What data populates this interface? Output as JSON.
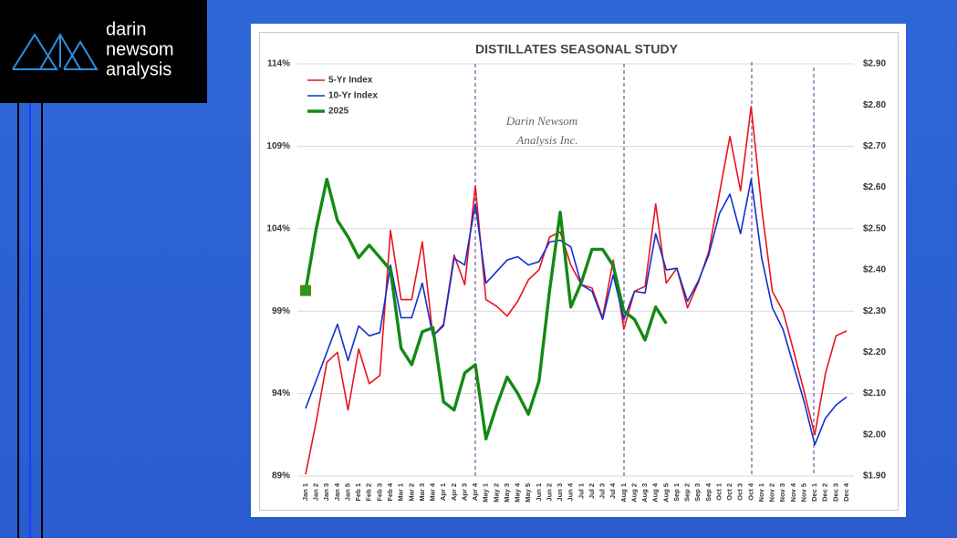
{
  "logo": {
    "lines": [
      "darin",
      "newsom",
      "analysis"
    ]
  },
  "chart_data": {
    "type": "line",
    "title": "DISTILLATES SEASONAL STUDY",
    "annotations": [
      "Darin Newsom",
      "Analysis Inc."
    ],
    "categories": [
      "Jan 1",
      "Jan 2",
      "Jan 3",
      "Jan 4",
      "Jan 5",
      "Feb 1",
      "Feb 2",
      "Feb 3",
      "Feb 4",
      "Mar 1",
      "Mar 2",
      "Mar 3",
      "Mar 4",
      "Apr 1",
      "Apr 2",
      "Apr 3",
      "Apr 4",
      "May 1",
      "May 2",
      "May 3",
      "May 4",
      "May 5",
      "Jun 1",
      "Jun 2",
      "Jun 3",
      "Jun 4",
      "Jul 1",
      "Jul 2",
      "Jul 3",
      "Jul 4",
      "Aug 1",
      "Aug 2",
      "Aug 3",
      "Aug 4",
      "Aug 5",
      "Sep 1",
      "Sep 2",
      "Sep 3",
      "Sep 4",
      "Oct 1",
      "Oct 2",
      "Oct 3",
      "Oct 4",
      "Nov 1",
      "Nov 2",
      "Nov 3",
      "Nov 4",
      "Nov 5",
      "Dec 1",
      "Dec 2",
      "Dec 3",
      "Dec 4"
    ],
    "series": [
      {
        "name": "5-Yr Index",
        "color": "#e8141e",
        "width": 1.6,
        "values": [
          89.1,
          92.3,
          95.9,
          96.5,
          93.0,
          96.7,
          94.6,
          95.1,
          103.9,
          99.7,
          99.7,
          103.2,
          97.5,
          98.2,
          102.4,
          100.6,
          106.6,
          99.7,
          99.3,
          98.7,
          99.6,
          100.9,
          101.5,
          103.5,
          103.8,
          101.8,
          100.6,
          100.4,
          98.6,
          102.1,
          97.9,
          100.2,
          100.5,
          105.5,
          100.7,
          101.6,
          99.2,
          100.7,
          102.6,
          106.1,
          109.6,
          106.3,
          111.4,
          105.2,
          100.2,
          99.0,
          96.6,
          94.1,
          91.5,
          95.2,
          97.5,
          97.8
        ]
      },
      {
        "name": "10-Yr Index",
        "color": "#1030d0",
        "width": 1.6,
        "values": [
          93.1,
          94.8,
          96.5,
          98.2,
          96.0,
          98.1,
          97.5,
          97.7,
          101.8,
          98.6,
          98.6,
          100.7,
          97.5,
          98.1,
          102.2,
          101.8,
          105.5,
          100.7,
          101.4,
          102.1,
          102.3,
          101.8,
          102.0,
          103.2,
          103.3,
          102.9,
          100.6,
          100.2,
          98.5,
          101.2,
          98.5,
          100.2,
          100.1,
          103.7,
          101.5,
          101.6,
          99.6,
          100.8,
          102.4,
          104.9,
          106.1,
          103.7,
          107.0,
          102.2,
          99.2,
          97.9,
          95.7,
          93.5,
          90.9,
          92.5,
          93.3,
          93.8
        ]
      },
      {
        "name": "2025",
        "color": "#138a13",
        "width": 3.4,
        "axis": "y2",
        "values": [
          2.35,
          2.5,
          2.62,
          2.52,
          2.48,
          2.43,
          2.46,
          2.43,
          2.4,
          2.21,
          2.17,
          2.25,
          2.26,
          2.08,
          2.06,
          2.15,
          2.17,
          1.99,
          2.07,
          2.14,
          2.1,
          2.05,
          2.13,
          2.35,
          2.54,
          2.31,
          2.37,
          2.45,
          2.45,
          2.41,
          2.3,
          2.28,
          2.23,
          2.31,
          2.27,
          null,
          null,
          null,
          null,
          null,
          null,
          null,
          null,
          null,
          null,
          null,
          null,
          null,
          null,
          null,
          null,
          null
        ]
      }
    ],
    "ylim": [
      89,
      114
    ],
    "yticks": [
      {
        "value": 89,
        "label": "89%"
      },
      {
        "value": 94,
        "label": "94%"
      },
      {
        "value": 99,
        "label": "99%"
      },
      {
        "value": 104,
        "label": "104%"
      },
      {
        "value": 109,
        "label": "109%"
      },
      {
        "value": 114,
        "label": "114%"
      }
    ],
    "y2lim": [
      1.9,
      2.9
    ],
    "y2ticks": [
      {
        "value": 1.9,
        "label": "$1.90"
      },
      {
        "value": 2.0,
        "label": "$2.00"
      },
      {
        "value": 2.1,
        "label": "$2.10"
      },
      {
        "value": 2.2,
        "label": "$2.20"
      },
      {
        "value": 2.3,
        "label": "$2.30"
      },
      {
        "value": 2.4,
        "label": "$2.40"
      },
      {
        "value": 2.5,
        "label": "$2.50"
      },
      {
        "value": 2.6,
        "label": "$2.60"
      },
      {
        "value": 2.7,
        "label": "$2.70"
      },
      {
        "value": 2.8,
        "label": "$2.80"
      },
      {
        "value": 2.9,
        "label": "$2.90"
      }
    ],
    "grid": true,
    "legend": "top-left"
  }
}
